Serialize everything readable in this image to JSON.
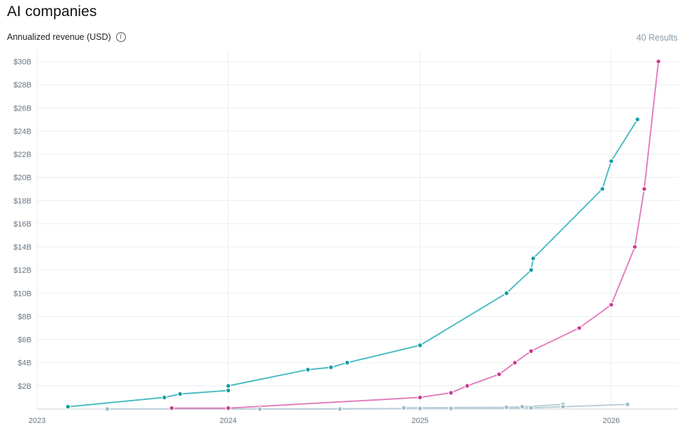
{
  "header": {
    "title": "AI companies",
    "subtitle": "Annualized revenue (USD)",
    "results": "40 Results"
  },
  "chart_data": {
    "type": "line",
    "title": "AI companies",
    "ylabel": "Annualized revenue (USD)",
    "xlabel": "",
    "x_ticks": [
      "2023",
      "2024",
      "2025",
      "2026"
    ],
    "y_ticks": [
      "$2B",
      "$4B",
      "$6B",
      "$8B",
      "$10B",
      "$12B",
      "$14B",
      "$16B",
      "$18B",
      "$20B",
      "$22B",
      "$24B",
      "$26B",
      "$28B",
      "$30B"
    ],
    "ylim": [
      0,
      30
    ],
    "xlim": [
      "2023-01-01",
      "2026-04-01"
    ],
    "grid": true,
    "series": [
      {
        "color": "#4cbcc4",
        "marker_color": "#129ea4",
        "points": [
          [
            "2023-03-01",
            0.2
          ],
          [
            "2023-09-01",
            1.0
          ],
          [
            "2023-10-01",
            1.3
          ],
          [
            "2024-01-01",
            1.6
          ],
          [
            "2024-01-01",
            2.0
          ],
          [
            "2024-06-01",
            3.4
          ],
          [
            "2024-07-15",
            3.6
          ],
          [
            "2024-08-15",
            4.0
          ],
          [
            "2025-01-01",
            5.5
          ],
          [
            "2025-06-15",
            10.0
          ],
          [
            "2025-08-01",
            12.0
          ],
          [
            "2025-08-05",
            13.0
          ],
          [
            "2025-12-15",
            19.0
          ],
          [
            "2026-01-01",
            21.4
          ],
          [
            "2026-02-20",
            25.0
          ]
        ]
      },
      {
        "color": "#e27fbe",
        "marker_color": "#cb3c8e",
        "points": [
          [
            "2023-09-15",
            0.08
          ],
          [
            "2024-01-01",
            0.08
          ],
          [
            "2025-01-01",
            1.0
          ],
          [
            "2025-03-01",
            1.4
          ],
          [
            "2025-04-01",
            2.0
          ],
          [
            "2025-06-01",
            3.0
          ],
          [
            "2025-07-01",
            4.0
          ],
          [
            "2025-08-01",
            5.0
          ],
          [
            "2025-11-01",
            7.0
          ],
          [
            "2026-01-01",
            9.0
          ],
          [
            "2026-02-15",
            14.0
          ],
          [
            "2026-03-05",
            19.0
          ],
          [
            "2026-04-01",
            30.0
          ]
        ]
      },
      {
        "color": "#bcd0d8",
        "marker_color": "#a4bcc8",
        "points": [
          [
            "2024-12-01",
            0.1
          ],
          [
            "2025-06-15",
            0.15
          ],
          [
            "2025-07-15",
            0.2
          ],
          [
            "2025-10-01",
            0.4
          ]
        ]
      },
      {
        "color": "#bcd0d8",
        "marker_color": "#a4bcc8",
        "points": [
          [
            "2024-03-01",
            0.0
          ],
          [
            "2024-08-01",
            0.0
          ],
          [
            "2025-03-01",
            0.05
          ],
          [
            "2025-08-01",
            0.1
          ],
          [
            "2025-10-01",
            0.2
          ],
          [
            "2026-02-01",
            0.4
          ]
        ]
      },
      {
        "color": "#bcd0d8",
        "marker_color": "#a4bcc8",
        "points": [
          [
            "2023-05-15",
            0.0
          ],
          [
            "2024-01-01",
            0.0
          ],
          [
            "2025-01-01",
            0.05
          ]
        ]
      }
    ]
  }
}
